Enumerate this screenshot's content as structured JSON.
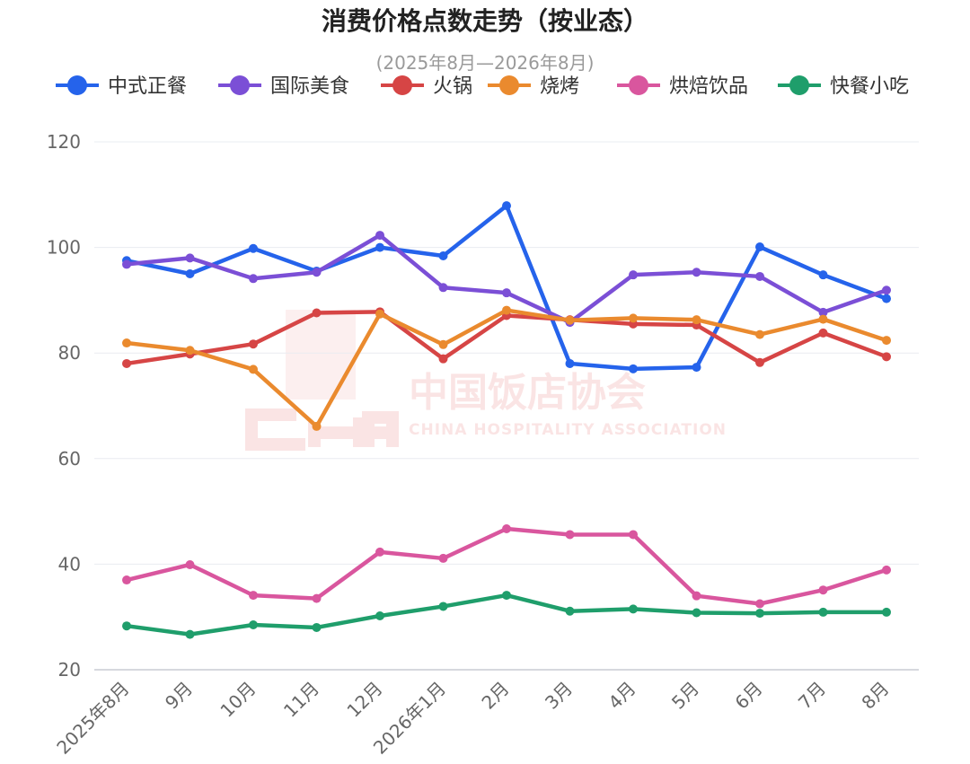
{
  "chart_data": {
    "type": "line",
    "title": "消费价格点数走势（按业态）",
    "subtitle": "(2025年8月—2026年8月)",
    "categories": [
      "2025年8月",
      "9月",
      "10月",
      "11月",
      "12月",
      "2026年1月",
      "2月",
      "3月",
      "4月",
      "5月",
      "6月",
      "7月",
      "8月"
    ],
    "ylim": [
      20,
      120
    ],
    "yticks": [
      20,
      40,
      60,
      80,
      100,
      120
    ],
    "grid": true,
    "legend_position": "top",
    "series": [
      {
        "name": "中式正餐",
        "color": "#2563eb",
        "values": [
          97.5,
          95.0,
          99.8,
          95.5,
          100.0,
          98.4,
          107.9,
          78.0,
          77.0,
          77.3,
          100.1,
          94.8,
          90.3
        ]
      },
      {
        "name": "国际美食",
        "color": "#7b4fd6",
        "values": [
          96.8,
          98.0,
          94.1,
          95.3,
          102.3,
          92.4,
          91.4,
          85.8,
          94.8,
          95.3,
          94.5,
          87.7,
          91.9
        ]
      },
      {
        "name": "火锅",
        "color": "#d64545",
        "values": [
          78.0,
          79.8,
          81.7,
          87.6,
          87.8,
          78.9,
          87.1,
          86.3,
          85.5,
          85.3,
          78.2,
          83.8,
          79.3
        ]
      },
      {
        "name": "烧烤",
        "color": "#ea8a2e",
        "values": [
          81.9,
          80.5,
          76.9,
          66.1,
          87.4,
          81.6,
          88.1,
          86.2,
          86.6,
          86.3,
          83.5,
          86.4,
          82.4
        ]
      },
      {
        "name": "烘焙饮品",
        "color": "#d9569e",
        "values": [
          37.0,
          39.9,
          34.1,
          33.5,
          42.3,
          41.1,
          46.7,
          45.6,
          45.6,
          34.0,
          32.5,
          35.1,
          38.9
        ]
      },
      {
        "name": "快餐小吃",
        "color": "#1f9e6b",
        "values": [
          28.3,
          26.7,
          28.5,
          28.0,
          30.2,
          32.0,
          34.1,
          31.1,
          31.5,
          30.8,
          30.7,
          30.9,
          30.9
        ]
      }
    ]
  },
  "watermark": {
    "chinese": "中国饭店协会",
    "english": "CHINA HOSPITALITY ASSOCIATION",
    "logo": "CHA"
  }
}
